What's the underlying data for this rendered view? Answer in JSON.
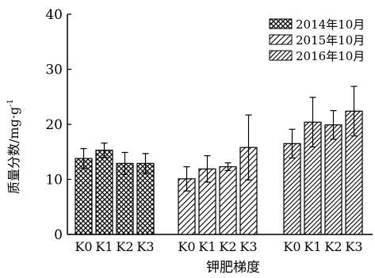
{
  "chart_data": {
    "type": "bar",
    "xlabel": "钾肥梯度",
    "ylabel": "质量分数/mg·g",
    "ylabel_superscript": "-1",
    "ylim": [
      0,
      40
    ],
    "yticks": [
      0,
      10,
      20,
      30,
      40
    ],
    "legend_position": "top-right",
    "groups": [
      {
        "categories": [
          "K0",
          "K1",
          "K2",
          "K3"
        ],
        "series_name": "2014年10月",
        "values": [
          13.8,
          15.3,
          12.9,
          12.9
        ],
        "errors": [
          1.8,
          1.3,
          2.0,
          1.8
        ]
      },
      {
        "categories": [
          "K0",
          "K1",
          "K2",
          "K3"
        ],
        "series_name": "2015年10月",
        "values": [
          10.1,
          11.9,
          12.3,
          15.8
        ],
        "errors": [
          2.2,
          2.4,
          0.7,
          5.9
        ]
      },
      {
        "categories": [
          "K0",
          "K1",
          "K2",
          "K3"
        ],
        "series_name": "2016年10月",
        "values": [
          16.5,
          20.4,
          19.9,
          22.4
        ],
        "errors": [
          2.6,
          4.5,
          2.6,
          4.5
        ]
      }
    ],
    "legend": [
      {
        "label": "2014年10月",
        "pattern": "crosshatch"
      },
      {
        "label": "2015年10月",
        "pattern": "diagonal"
      },
      {
        "label": "2016年10月",
        "pattern": "diagonal-dense"
      }
    ]
  }
}
